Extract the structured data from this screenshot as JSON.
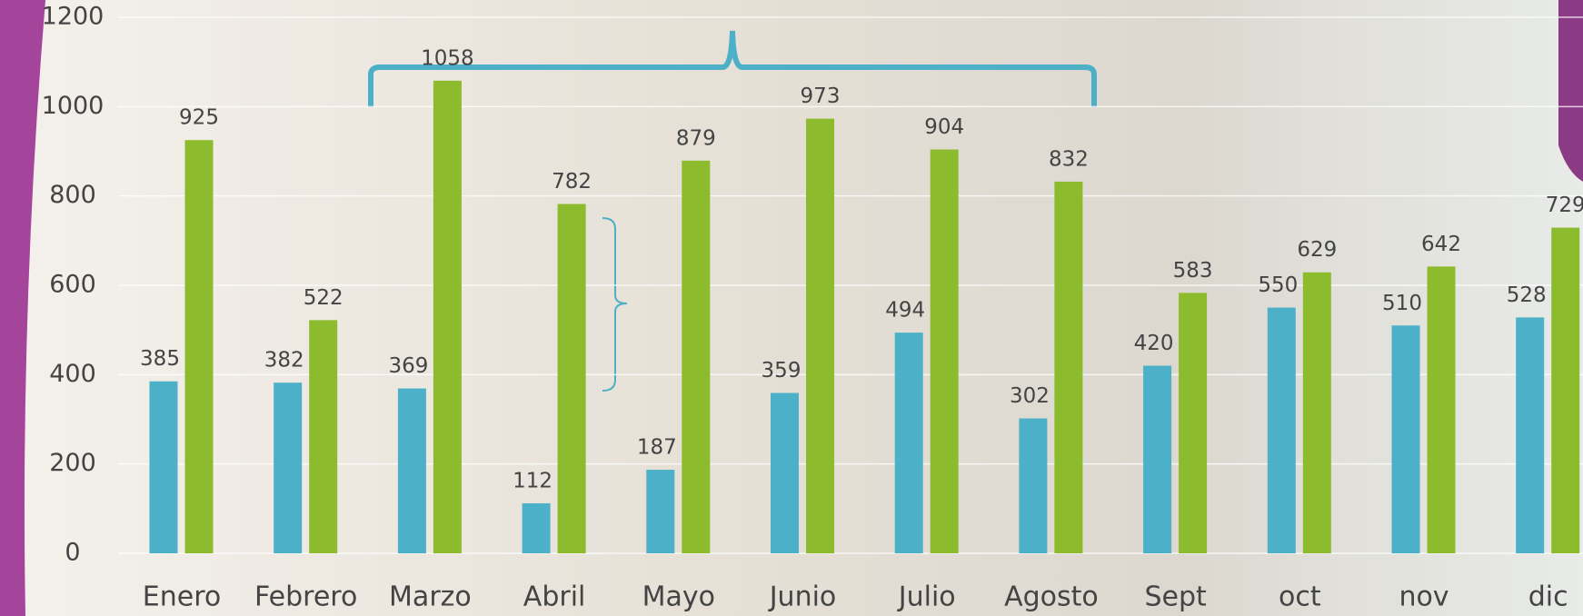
{
  "chart_data": {
    "type": "bar",
    "categories": [
      "Enero",
      "Febrero",
      "Marzo",
      "Abril",
      "Mayo",
      "Junio",
      "Julio",
      "Agosto",
      "Sept",
      "oct",
      "nov",
      "dic"
    ],
    "series": [
      {
        "color": "#4bb0c8",
        "values": [
          385,
          382,
          369,
          112,
          187,
          359,
          494,
          302,
          420,
          550,
          510,
          528
        ]
      },
      {
        "color": "#8dbb2e",
        "values": [
          925,
          522,
          1058,
          782,
          879,
          973,
          904,
          832,
          583,
          629,
          642,
          729
        ]
      }
    ],
    "ylim": [
      0,
      1200
    ],
    "yticks": [
      0,
      200,
      400,
      600,
      800,
      1000,
      1200
    ],
    "grid": true
  }
}
